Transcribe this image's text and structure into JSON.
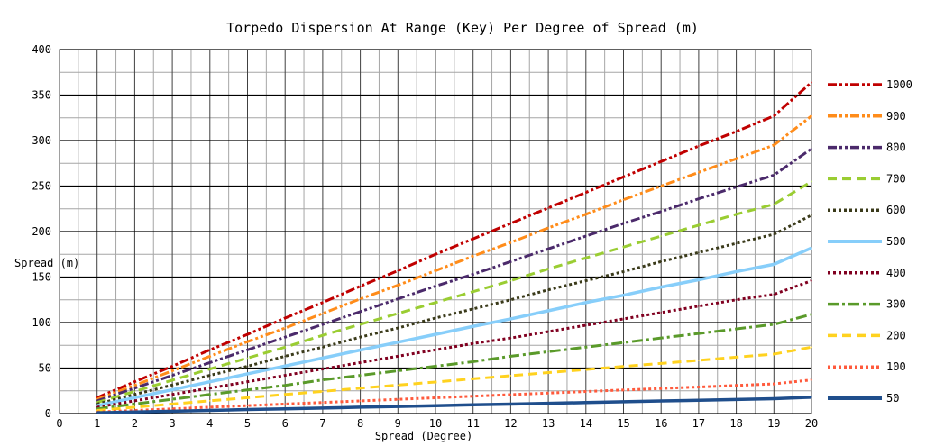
{
  "chart_data": {
    "type": "line",
    "title": "Torpedo Dispersion At Range (Key) Per Degree of Spread (m)",
    "xlabel": "Spread (Degree)",
    "ylabel": "Spread (m)",
    "xlim": [
      0,
      20
    ],
    "ylim": [
      0,
      400
    ],
    "x_ticks": [
      0,
      1,
      2,
      3,
      4,
      5,
      6,
      7,
      8,
      9,
      10,
      11,
      12,
      13,
      14,
      15,
      16,
      17,
      18,
      19,
      20
    ],
    "y_ticks": [
      0,
      50,
      100,
      150,
      200,
      250,
      300,
      350,
      400
    ],
    "grid": true,
    "legend_position": "right",
    "x": [
      1,
      2,
      3,
      4,
      5,
      6,
      7,
      8,
      9,
      10,
      11,
      12,
      13,
      14,
      15,
      16,
      17,
      18,
      19,
      20
    ],
    "series": [
      {
        "name": "1000",
        "color": "#c00000",
        "dash": "dash-dot-dot",
        "values": [
          17.5,
          35,
          52,
          70,
          87,
          105,
          122,
          140,
          157,
          175,
          192,
          209,
          226,
          243,
          260,
          277,
          294,
          310,
          327,
          364
        ]
      },
      {
        "name": "900",
        "color": "#ff8c1a",
        "dash": "dash-dot-dot",
        "values": [
          15.7,
          31,
          47,
          63,
          79,
          94,
          110,
          126,
          141,
          157,
          173,
          188,
          204,
          219,
          235,
          250,
          265,
          280,
          295,
          327
        ]
      },
      {
        "name": "800",
        "color": "#4b2a6b",
        "dash": "dash-dot-dot",
        "values": [
          14,
          28,
          42,
          56,
          70,
          84,
          98,
          112,
          126,
          140,
          153,
          167,
          181,
          195,
          209,
          222,
          236,
          249,
          262,
          291
        ]
      },
      {
        "name": "700",
        "color": "#9acd32",
        "dash": "dash",
        "values": [
          12.2,
          24.4,
          36.7,
          49,
          61,
          73,
          86,
          98,
          110,
          122,
          134,
          146,
          159,
          171,
          183,
          195,
          207,
          219,
          230,
          255
        ]
      },
      {
        "name": "600",
        "color": "#3a3a1a",
        "dash": "dot",
        "values": [
          10.5,
          21,
          31.4,
          42,
          52,
          63,
          73,
          84,
          94,
          105,
          115,
          125,
          136,
          146,
          156,
          167,
          177,
          187,
          197,
          218
        ]
      },
      {
        "name": "500",
        "color": "#87cefa",
        "dash": "solid",
        "values": [
          8.7,
          17.5,
          26.2,
          35,
          43.6,
          52.3,
          61,
          69.8,
          78.4,
          87,
          95.8,
          104,
          113,
          122,
          130,
          139,
          147,
          156,
          164,
          182
        ]
      },
      {
        "name": "400",
        "color": "#800020",
        "dash": "dot",
        "values": [
          7,
          14,
          21,
          28,
          35,
          42,
          49,
          56,
          63,
          70,
          77,
          83,
          90,
          97,
          104,
          111,
          118,
          125,
          131,
          146
        ]
      },
      {
        "name": "300",
        "color": "#5a9a2a",
        "dash": "dash-dot",
        "values": [
          5.2,
          10.5,
          15.7,
          21,
          26,
          31,
          37,
          42,
          47,
          52,
          57,
          63,
          68,
          73,
          78,
          83,
          88,
          93,
          98,
          109
        ]
      },
      {
        "name": "200",
        "color": "#ffd21f",
        "dash": "dash",
        "values": [
          3.5,
          7,
          10.5,
          14,
          17.4,
          21,
          24.4,
          27.9,
          31.3,
          34.7,
          38.2,
          41.6,
          45,
          48.4,
          51.8,
          55.1,
          58.5,
          62,
          65.3,
          73
        ]
      },
      {
        "name": "100",
        "color": "#ff5a3c",
        "dash": "dot",
        "values": [
          1.7,
          3.5,
          5.2,
          7,
          8.7,
          10.5,
          12.2,
          13.9,
          15.6,
          17.4,
          19.1,
          20.8,
          22.5,
          24.2,
          25.9,
          27.6,
          29.2,
          30.9,
          32.6,
          37
        ]
      },
      {
        "name": "50",
        "color": "#1f4e8c",
        "dash": "solid",
        "values": [
          0.9,
          1.7,
          2.6,
          3.5,
          4.4,
          5.2,
          6.1,
          7,
          7.8,
          8.7,
          9.6,
          10.4,
          11.3,
          12.1,
          13,
          13.8,
          14.6,
          15.5,
          16.3,
          18
        ]
      }
    ]
  }
}
